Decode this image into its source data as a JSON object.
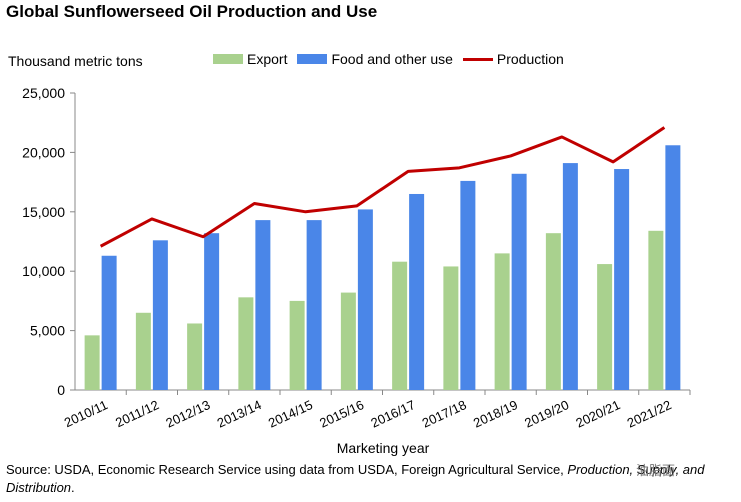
{
  "title": "Global Sunflowerseed Oil Production and Use",
  "colors": {
    "export": "#a9d18e",
    "food": "#4a86e8",
    "production": "#c00000",
    "axis": "#888888"
  },
  "legend": {
    "export": "Export",
    "food": "Food and other use",
    "production": "Production"
  },
  "source": {
    "prefix": "Source: USDA, Economic Research Service using data from USDA, Foreign Agricultural Service,",
    "italic": "Production, Supply, and Distribution",
    "suffix": "."
  },
  "watermark": "油脂面",
  "chart_data": {
    "type": "bar",
    "title": "Global Sunflowerseed Oil Production and Use",
    "ylabel": "Thousand metric tons",
    "xlabel": "Marketing year",
    "ylim": [
      0,
      25000
    ],
    "yticks": [
      0,
      5000,
      10000,
      15000,
      20000,
      25000
    ],
    "ytick_labels": [
      "0",
      "5,000",
      "10,000",
      "15,000",
      "20,000",
      "25,000"
    ],
    "categories": [
      "2010/11",
      "2011/12",
      "2012/13",
      "2013/14",
      "2014/15",
      "2015/16",
      "2016/17",
      "2017/18",
      "2018/19",
      "2019/20",
      "2020/21",
      "2021/22"
    ],
    "series": [
      {
        "name": "Export",
        "type": "bar",
        "values": [
          4600,
          6500,
          5600,
          7800,
          7500,
          8200,
          10800,
          10400,
          11500,
          13200,
          10600,
          13400
        ]
      },
      {
        "name": "Food and other use",
        "type": "bar",
        "values": [
          11300,
          12600,
          13200,
          14300,
          14300,
          15200,
          16500,
          17600,
          18200,
          19100,
          18600,
          20600
        ]
      },
      {
        "name": "Production",
        "type": "line",
        "values": [
          12100,
          14400,
          12900,
          15700,
          15000,
          15500,
          18400,
          18700,
          19700,
          21300,
          19200,
          22100
        ]
      }
    ],
    "grid": false,
    "legend_position": "top"
  }
}
